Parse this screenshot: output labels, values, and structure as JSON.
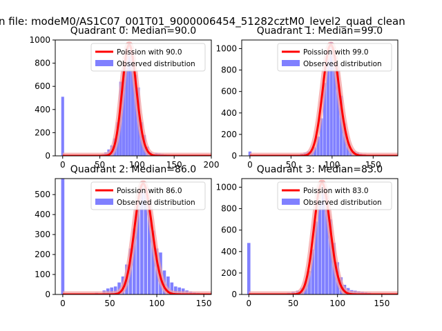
{
  "figure": {
    "suptitle": "n file: modeM0/AS1C07_001T01_9000006454_51282cztM0_level2_quad_clean"
  },
  "colors": {
    "histogram": "#8080ff",
    "poisson": "#ff0000",
    "poisson_shade": "#f4a0a0",
    "axes": "#000000"
  },
  "chart_data": [
    {
      "type": "bar",
      "title": "Quadrant 0: Median=90.0",
      "xlim": [
        -10,
        200
      ],
      "ylim": [
        0,
        1000
      ],
      "xticks": [
        "0",
        "50",
        "100",
        "150",
        "200"
      ],
      "xtick_values": [
        0,
        50,
        100,
        150,
        200
      ],
      "yticks": [
        "0",
        "200",
        "400",
        "600",
        "800",
        "1000"
      ],
      "ytick_values": [
        0,
        200,
        400,
        600,
        800,
        1000
      ],
      "legend_placement": "upper right",
      "series": [
        {
          "name": "Poission with 90.0",
          "kind": "line",
          "lambda": 90.0,
          "peak": 960
        },
        {
          "name": "Observed distribution",
          "kind": "histogram",
          "bin_width": 3.8,
          "x": [
            0,
            50,
            54,
            58,
            62,
            66,
            70,
            74,
            78,
            82,
            86,
            90,
            94,
            98,
            102,
            106,
            110,
            114,
            118,
            122,
            126,
            130,
            134,
            138,
            142,
            146,
            150,
            154
          ],
          "values": [
            510,
            5,
            15,
            30,
            55,
            90,
            150,
            290,
            640,
            760,
            870,
            960,
            880,
            700,
            590,
            290,
            180,
            80,
            30,
            15,
            25,
            20,
            15,
            12,
            10,
            8,
            6,
            4
          ]
        }
      ]
    },
    {
      "type": "bar",
      "title": "Quadrant 1: Median=99.0",
      "xlim": [
        -10,
        180
      ],
      "ylim": [
        0,
        1080
      ],
      "xticks": [
        "0",
        "50",
        "100",
        "150"
      ],
      "xtick_values": [
        0,
        50,
        100,
        150
      ],
      "yticks": [
        "0",
        "200",
        "400",
        "600",
        "800",
        "1000"
      ],
      "ytick_values": [
        0,
        200,
        400,
        600,
        800,
        1000
      ],
      "legend_placement": "upper right",
      "series": [
        {
          "name": "Poission with 99.0",
          "kind": "line",
          "lambda": 99.0,
          "peak": 1035
        },
        {
          "name": "Observed distribution",
          "kind": "histogram",
          "bin_width": 3.6,
          "x": [
            0,
            55,
            59,
            63,
            67,
            71,
            75,
            79,
            83,
            87,
            91,
            95,
            99,
            103,
            107,
            111,
            115,
            119,
            123,
            127,
            131,
            135,
            139,
            143,
            147,
            151,
            155
          ],
          "values": [
            40,
            5,
            10,
            20,
            30,
            40,
            50,
            80,
            180,
            350,
            680,
            900,
            1060,
            940,
            860,
            560,
            300,
            130,
            60,
            40,
            30,
            20,
            15,
            10,
            8,
            6,
            4
          ]
        }
      ]
    },
    {
      "type": "bar",
      "title": "Quadrant 2: Median=86.0",
      "xlim": [
        -8,
        158
      ],
      "ylim": [
        0,
        580
      ],
      "xticks": [
        "0",
        "50",
        "100",
        "150"
      ],
      "xtick_values": [
        0,
        50,
        100,
        150
      ],
      "yticks": [
        "0",
        "100",
        "200",
        "300",
        "400",
        "500"
      ],
      "ytick_values": [
        0,
        100,
        200,
        300,
        400,
        500
      ],
      "legend_placement": "upper right",
      "series": [
        {
          "name": "Poission with 86.0",
          "kind": "line",
          "lambda": 86.0,
          "peak": 555
        },
        {
          "name": "Observed distribution",
          "kind": "histogram",
          "bin_width": 3.4,
          "x": [
            0,
            28,
            36,
            44,
            48,
            52,
            56,
            60,
            64,
            68,
            72,
            76,
            80,
            84,
            88,
            92,
            96,
            100,
            104,
            108,
            112,
            116,
            120,
            124,
            128,
            132,
            136,
            140,
            144,
            148
          ],
          "values": [
            580,
            5,
            8,
            20,
            30,
            35,
            40,
            60,
            90,
            150,
            230,
            330,
            460,
            550,
            520,
            460,
            320,
            230,
            210,
            120,
            90,
            60,
            40,
            35,
            30,
            20,
            15,
            10,
            8,
            5
          ]
        }
      ]
    },
    {
      "type": "bar",
      "title": "Quadrant 3: Median=83.0",
      "xlim": [
        -8,
        168
      ],
      "ylim": [
        0,
        1080
      ],
      "xticks": [
        "0",
        "50",
        "100",
        "150"
      ],
      "xtick_values": [
        0,
        50,
        100,
        150
      ],
      "yticks": [
        "0",
        "200",
        "400",
        "600",
        "800",
        "1000"
      ],
      "ytick_values": [
        0,
        200,
        400,
        600,
        800,
        1000
      ],
      "legend_placement": "upper right",
      "series": [
        {
          "name": "Poission with 83.0",
          "kind": "line",
          "lambda": 83.0,
          "peak": 1040
        },
        {
          "name": "Observed distribution",
          "kind": "histogram",
          "bin_width": 3.6,
          "x": [
            0,
            40,
            45,
            50,
            55,
            60,
            64,
            68,
            72,
            76,
            80,
            84,
            88,
            92,
            96,
            100,
            104,
            108,
            112,
            116,
            120,
            124,
            128,
            132,
            136,
            140,
            144,
            148,
            152,
            156,
            160
          ],
          "values": [
            480,
            8,
            15,
            25,
            35,
            60,
            120,
            220,
            420,
            680,
            870,
            1050,
            920,
            700,
            480,
            300,
            160,
            90,
            60,
            40,
            35,
            30,
            25,
            20,
            15,
            10,
            8,
            6,
            5,
            3,
            2
          ]
        }
      ]
    }
  ]
}
